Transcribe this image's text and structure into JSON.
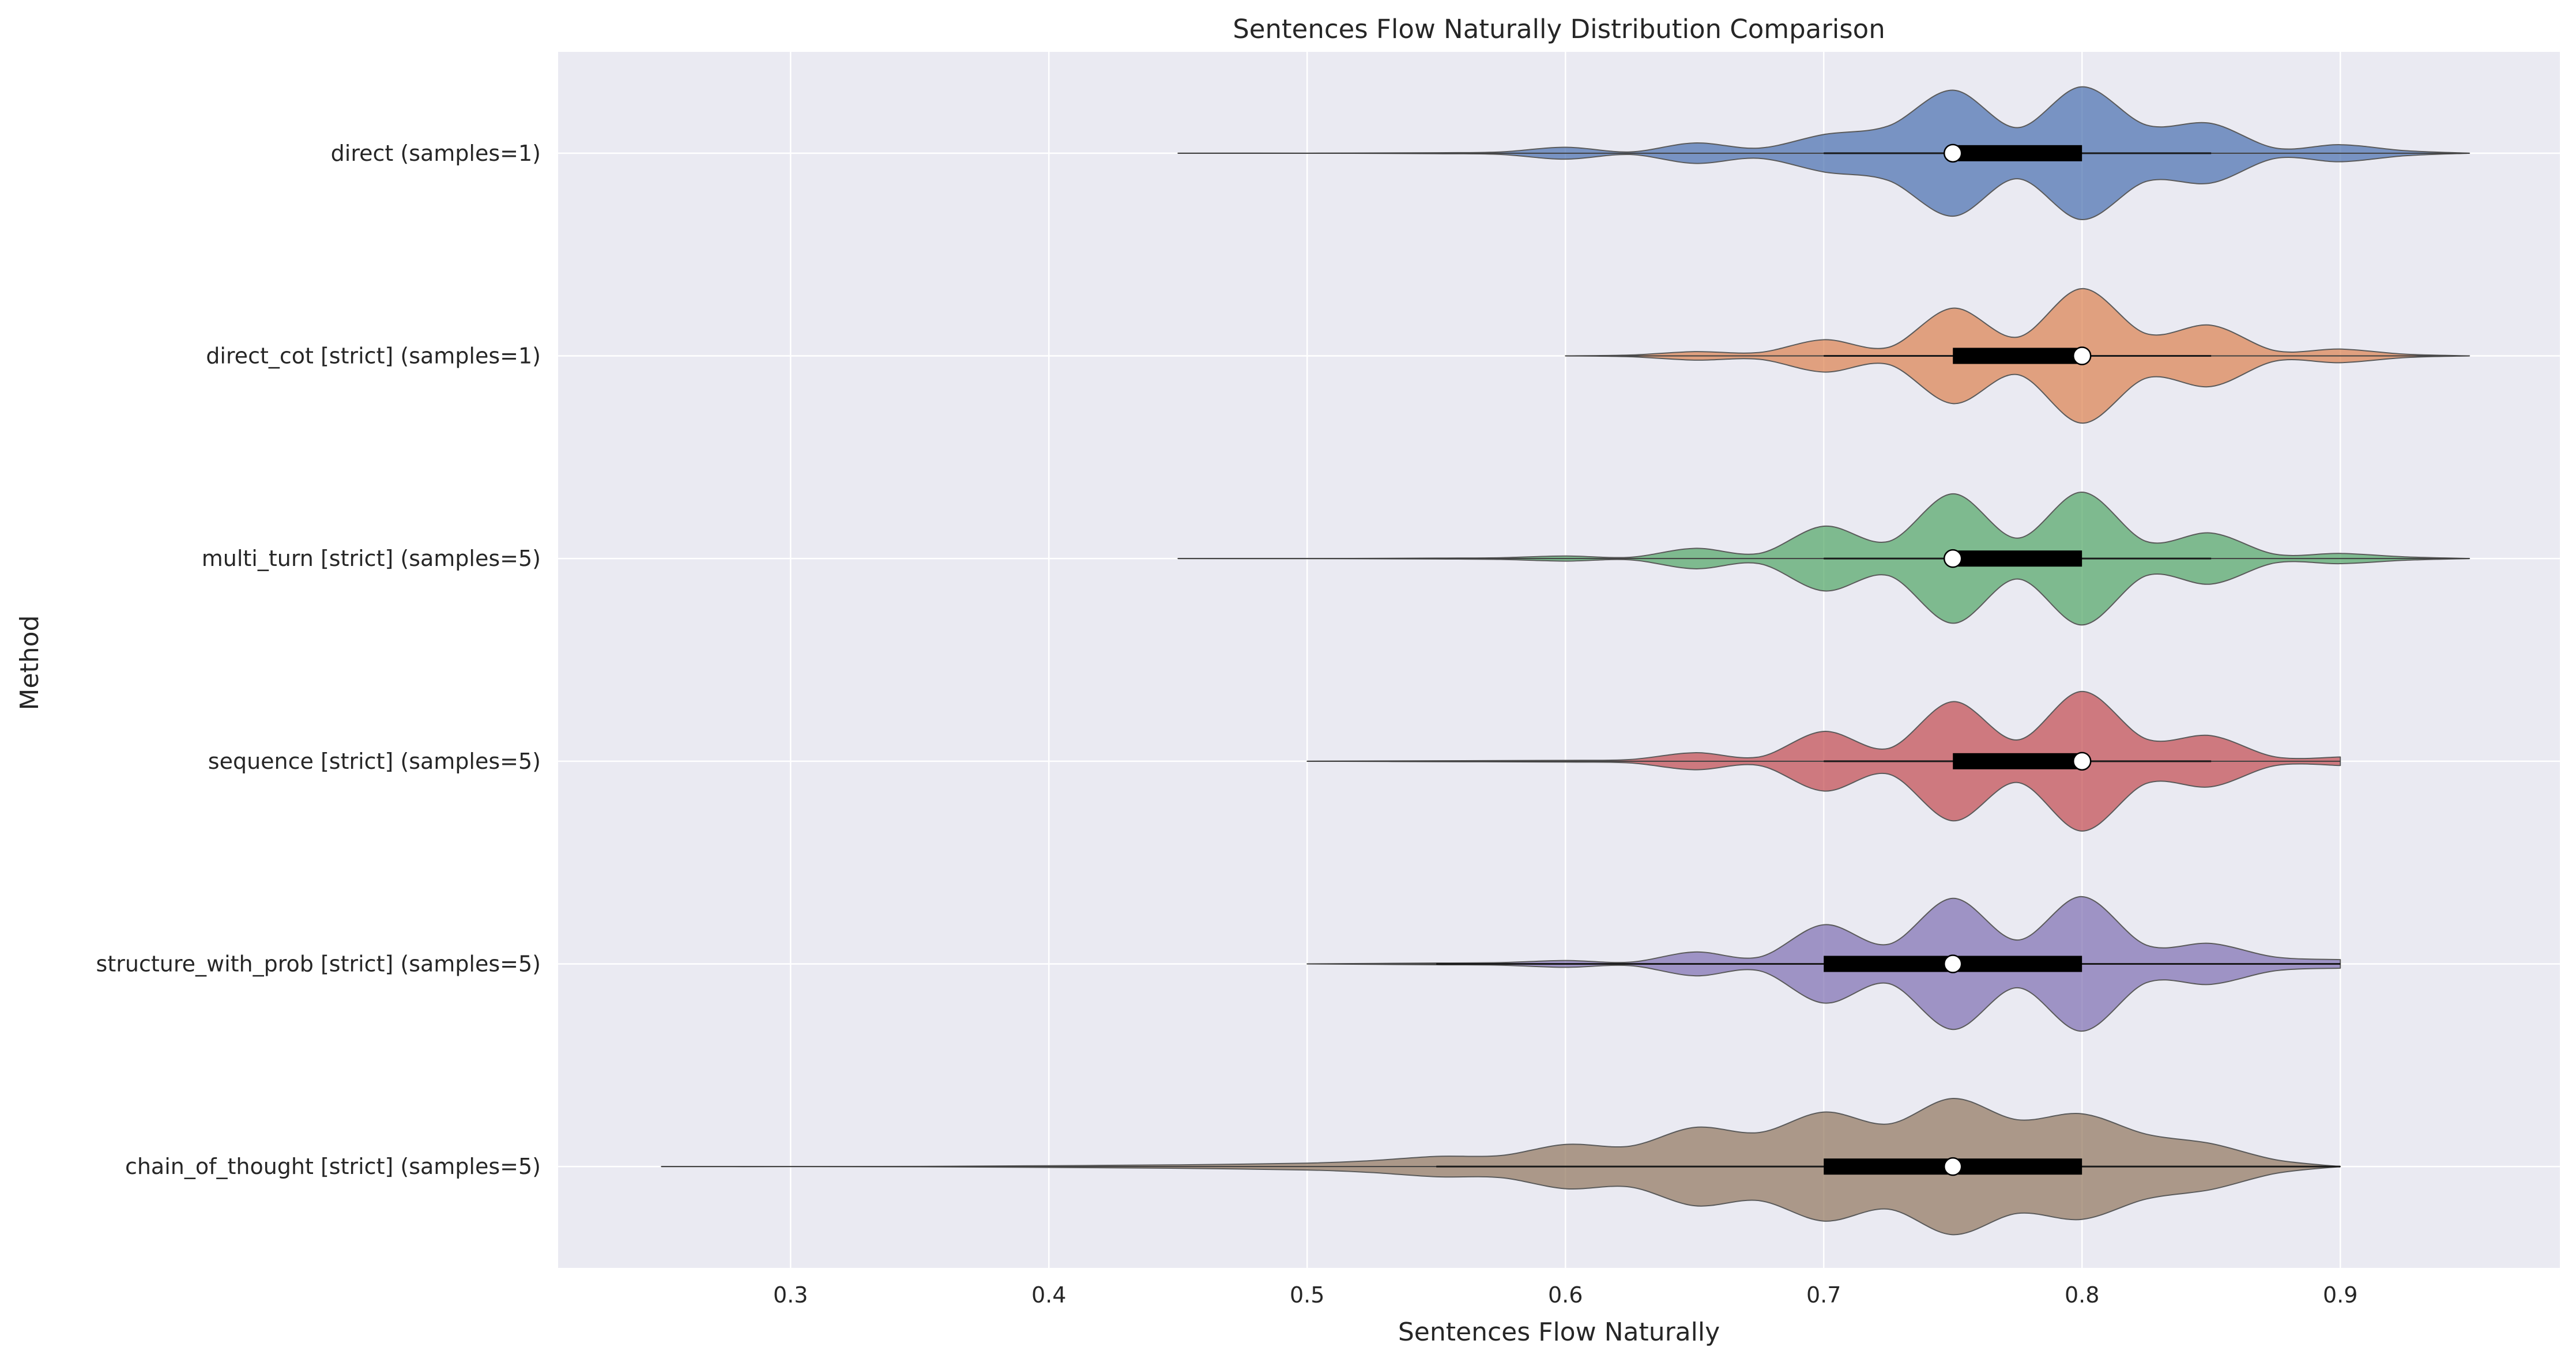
{
  "chart_data": {
    "type": "violin",
    "orientation": "horizontal",
    "title": "Sentences Flow Naturally Distribution Comparison",
    "xlabel": "Sentences Flow Naturally",
    "ylabel": "Method",
    "xlim": [
      0.21,
      0.985
    ],
    "xticks": [
      0.3,
      0.4,
      0.5,
      0.6,
      0.7,
      0.8,
      0.9
    ],
    "xtick_labels": [
      "0.3",
      "0.4",
      "0.5",
      "0.6",
      "0.7",
      "0.8",
      "0.9"
    ],
    "grid": true,
    "background": "#eaeaf2",
    "categories": [
      "direct (samples=1)",
      "direct_cot [strict] (samples=1)",
      "multi_turn [strict] (samples=5)",
      "sequence [strict] (samples=5)",
      "structure_with_prob [strict] (samples=5)",
      "chain_of_thought [strict] (samples=5)"
    ],
    "series": [
      {
        "color": "#4c72b0",
        "range": [
          0.45,
          0.95
        ],
        "whiskers": [
          0.7,
          0.85
        ],
        "q1": 0.75,
        "median": 0.75,
        "q3": 0.8,
        "density": [
          [
            0.45,
            0.0
          ],
          [
            0.5,
            0.0
          ],
          [
            0.55,
            0.005
          ],
          [
            0.575,
            0.015
          ],
          [
            0.6,
            0.07
          ],
          [
            0.625,
            0.015
          ],
          [
            0.65,
            0.12
          ],
          [
            0.675,
            0.06
          ],
          [
            0.7,
            0.22
          ],
          [
            0.725,
            0.32
          ],
          [
            0.75,
            0.74
          ],
          [
            0.775,
            0.3
          ],
          [
            0.8,
            0.78
          ],
          [
            0.825,
            0.33
          ],
          [
            0.85,
            0.35
          ],
          [
            0.875,
            0.06
          ],
          [
            0.9,
            0.1
          ],
          [
            0.925,
            0.03
          ],
          [
            0.95,
            0.0
          ]
        ]
      },
      {
        "color": "#dd8452",
        "range": [
          0.6,
          0.95
        ],
        "whiskers": [
          0.7,
          0.85
        ],
        "q1": 0.75,
        "median": 0.8,
        "q3": 0.8,
        "density": [
          [
            0.6,
            0.0
          ],
          [
            0.625,
            0.01
          ],
          [
            0.65,
            0.05
          ],
          [
            0.675,
            0.04
          ],
          [
            0.7,
            0.19
          ],
          [
            0.725,
            0.1
          ],
          [
            0.75,
            0.56
          ],
          [
            0.775,
            0.22
          ],
          [
            0.8,
            0.79
          ],
          [
            0.825,
            0.26
          ],
          [
            0.85,
            0.36
          ],
          [
            0.875,
            0.06
          ],
          [
            0.9,
            0.08
          ],
          [
            0.925,
            0.02
          ],
          [
            0.95,
            0.0
          ]
        ]
      },
      {
        "color": "#55a868",
        "range": [
          0.45,
          0.95
        ],
        "whiskers": [
          0.7,
          0.85
        ],
        "q1": 0.75,
        "median": 0.75,
        "q3": 0.8,
        "density": [
          [
            0.45,
            0.0
          ],
          [
            0.5,
            0.0
          ],
          [
            0.55,
            0.005
          ],
          [
            0.575,
            0.01
          ],
          [
            0.6,
            0.03
          ],
          [
            0.625,
            0.015
          ],
          [
            0.65,
            0.12
          ],
          [
            0.675,
            0.06
          ],
          [
            0.7,
            0.38
          ],
          [
            0.725,
            0.2
          ],
          [
            0.75,
            0.76
          ],
          [
            0.775,
            0.24
          ],
          [
            0.8,
            0.78
          ],
          [
            0.825,
            0.2
          ],
          [
            0.85,
            0.3
          ],
          [
            0.875,
            0.05
          ],
          [
            0.9,
            0.06
          ],
          [
            0.925,
            0.02
          ],
          [
            0.95,
            0.0
          ]
        ]
      },
      {
        "color": "#c44e52",
        "range": [
          0.5,
          0.9
        ],
        "whiskers": [
          0.7,
          0.85
        ],
        "q1": 0.75,
        "median": 0.8,
        "q3": 0.8,
        "density": [
          [
            0.5,
            0.0
          ],
          [
            0.55,
            0.005
          ],
          [
            0.6,
            0.01
          ],
          [
            0.625,
            0.02
          ],
          [
            0.65,
            0.1
          ],
          [
            0.675,
            0.05
          ],
          [
            0.7,
            0.35
          ],
          [
            0.725,
            0.15
          ],
          [
            0.75,
            0.7
          ],
          [
            0.775,
            0.25
          ],
          [
            0.8,
            0.82
          ],
          [
            0.825,
            0.26
          ],
          [
            0.85,
            0.3
          ],
          [
            0.875,
            0.05
          ],
          [
            0.9,
            0.05
          ]
        ]
      },
      {
        "color": "#8172b3",
        "range": [
          0.5,
          0.9
        ],
        "whiskers": [
          0.55,
          0.9
        ],
        "q1": 0.7,
        "median": 0.75,
        "q3": 0.8,
        "density": [
          [
            0.5,
            0.0
          ],
          [
            0.55,
            0.01
          ],
          [
            0.575,
            0.015
          ],
          [
            0.6,
            0.04
          ],
          [
            0.625,
            0.02
          ],
          [
            0.65,
            0.14
          ],
          [
            0.675,
            0.08
          ],
          [
            0.7,
            0.46
          ],
          [
            0.725,
            0.23
          ],
          [
            0.75,
            0.77
          ],
          [
            0.775,
            0.28
          ],
          [
            0.8,
            0.79
          ],
          [
            0.825,
            0.22
          ],
          [
            0.85,
            0.24
          ],
          [
            0.875,
            0.08
          ],
          [
            0.9,
            0.05
          ]
        ]
      },
      {
        "color": "#937860",
        "range": [
          0.25,
          0.9
        ],
        "whiskers": [
          0.55,
          0.9
        ],
        "q1": 0.7,
        "median": 0.75,
        "q3": 0.8,
        "density": [
          [
            0.25,
            0.0
          ],
          [
            0.3,
            0.0
          ],
          [
            0.35,
            0.002
          ],
          [
            0.4,
            0.01
          ],
          [
            0.45,
            0.02
          ],
          [
            0.5,
            0.04
          ],
          [
            0.525,
            0.07
          ],
          [
            0.55,
            0.12
          ],
          [
            0.575,
            0.13
          ],
          [
            0.6,
            0.26
          ],
          [
            0.625,
            0.24
          ],
          [
            0.65,
            0.46
          ],
          [
            0.675,
            0.4
          ],
          [
            0.7,
            0.64
          ],
          [
            0.725,
            0.5
          ],
          [
            0.75,
            0.8
          ],
          [
            0.775,
            0.55
          ],
          [
            0.8,
            0.62
          ],
          [
            0.825,
            0.38
          ],
          [
            0.85,
            0.27
          ],
          [
            0.875,
            0.08
          ],
          [
            0.9,
            0.0
          ]
        ]
      }
    ]
  }
}
